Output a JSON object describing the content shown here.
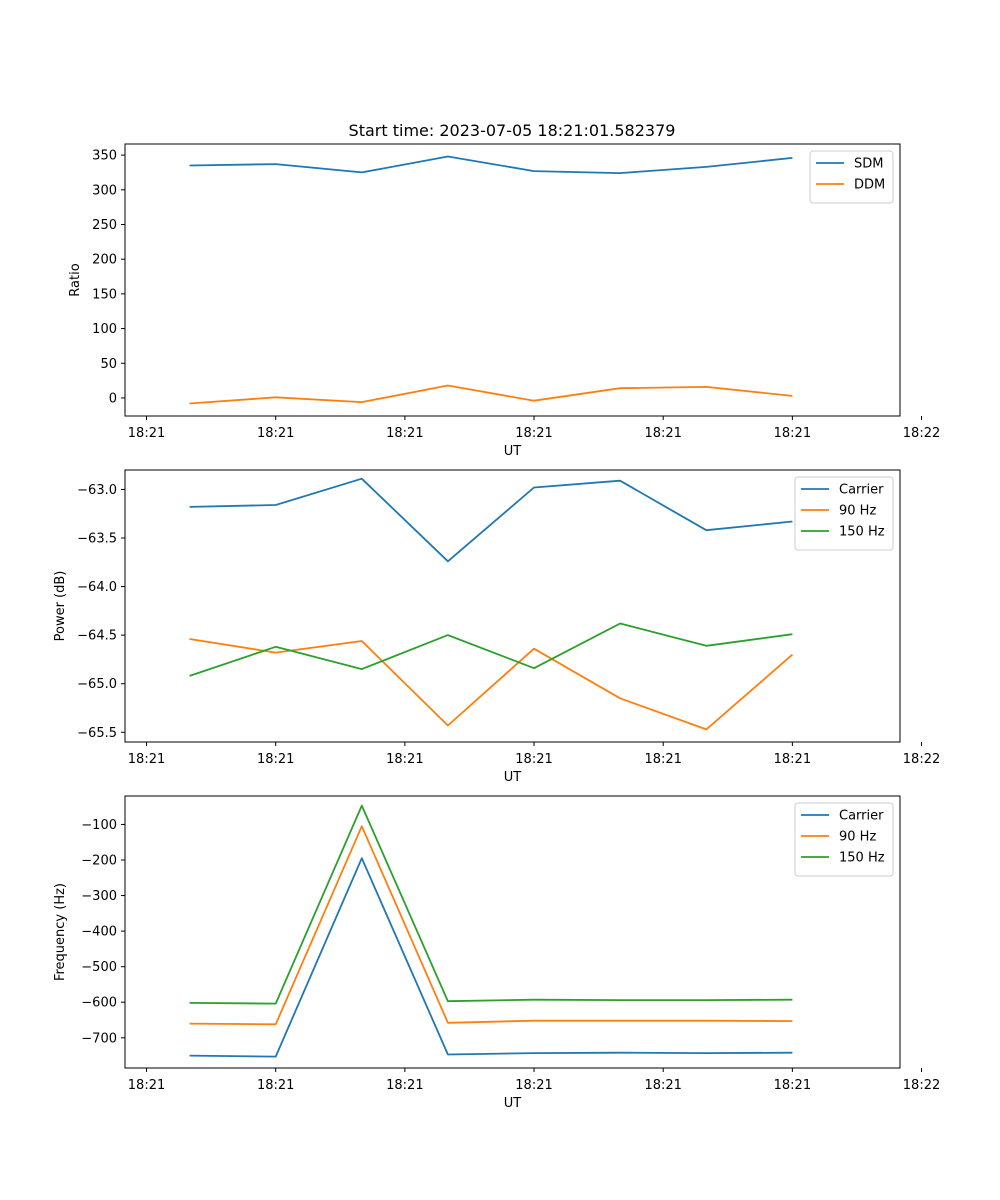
{
  "figure": {
    "title": "Start time: 2023-07-05 18:21:01.582379"
  },
  "chart_data": [
    {
      "type": "line",
      "title": "Start time: 2023-07-05 18:21:01.582379",
      "xlabel": "UT",
      "ylabel": "Ratio",
      "x": [
        1,
        2,
        3,
        4,
        5,
        6,
        7,
        8
      ],
      "xlim": [
        0.25,
        9.25
      ],
      "x_ticks": [
        0.5,
        2,
        3.5,
        5,
        6.5,
        8,
        9.5
      ],
      "x_tick_labels": [
        "18:21",
        "18:21",
        "18:21",
        "18:21",
        "18:21",
        "18:21",
        "18:22"
      ],
      "ylim": [
        -26,
        366
      ],
      "y_ticks": [
        0,
        50,
        100,
        150,
        200,
        250,
        300,
        350
      ],
      "y_tick_labels": [
        "0",
        "50",
        "100",
        "150",
        "200",
        "250",
        "300",
        "350"
      ],
      "legend_position": "top-right",
      "series": [
        {
          "name": "SDM",
          "color": "#1f77b4",
          "values": [
            335,
            337,
            325,
            348,
            327,
            324,
            333,
            346
          ]
        },
        {
          "name": "DDM",
          "color": "#ff7f0e",
          "values": [
            -8,
            1,
            -6,
            18,
            -4,
            14,
            16,
            3
          ]
        }
      ]
    },
    {
      "type": "line",
      "title": "",
      "xlabel": "UT",
      "ylabel": "Power (dB)",
      "x": [
        1,
        2,
        3,
        4,
        5,
        6,
        7,
        8
      ],
      "xlim": [
        0.25,
        9.25
      ],
      "x_ticks": [
        0.5,
        2,
        3.5,
        5,
        6.5,
        8,
        9.5
      ],
      "x_tick_labels": [
        "18:21",
        "18:21",
        "18:21",
        "18:21",
        "18:21",
        "18:21",
        "18:22"
      ],
      "ylim": [
        -65.6,
        -62.8
      ],
      "y_ticks": [
        -63.0,
        -63.5,
        -64.0,
        -64.5,
        -65.0,
        -65.5
      ],
      "y_tick_labels": [
        "−63.0",
        "−63.5",
        "−64.0",
        "−64.5",
        "−65.0",
        "−65.5"
      ],
      "legend_position": "top-right",
      "series": [
        {
          "name": "Carrier",
          "color": "#1f77b4",
          "values": [
            -63.18,
            -63.16,
            -62.89,
            -63.74,
            -62.98,
            -62.91,
            -63.42,
            -63.33
          ]
        },
        {
          "name": "90 Hz",
          "color": "#ff7f0e",
          "values": [
            -64.54,
            -64.68,
            -64.56,
            -65.43,
            -64.64,
            -65.15,
            -65.47,
            -64.7
          ]
        },
        {
          "name": "150 Hz",
          "color": "#2ca02c",
          "values": [
            -64.92,
            -64.62,
            -64.85,
            -64.5,
            -64.84,
            -64.38,
            -64.61,
            -64.49
          ]
        }
      ]
    },
    {
      "type": "line",
      "title": "",
      "xlabel": "UT",
      "ylabel": "Frequency (Hz)",
      "x": [
        1,
        2,
        3,
        4,
        5,
        6,
        7,
        8
      ],
      "xlim": [
        0.25,
        9.25
      ],
      "x_ticks": [
        0.5,
        2,
        3.5,
        5,
        6.5,
        8,
        9.5
      ],
      "x_tick_labels": [
        "18:21",
        "18:21",
        "18:21",
        "18:21",
        "18:21",
        "18:21",
        "18:22"
      ],
      "ylim": [
        -785,
        -20
      ],
      "y_ticks": [
        -100,
        -200,
        -300,
        -400,
        -500,
        -600,
        -700
      ],
      "y_tick_labels": [
        "−100",
        "−200",
        "−300",
        "−400",
        "−500",
        "−600",
        "−700"
      ],
      "legend_position": "top-right",
      "series": [
        {
          "name": "Carrier",
          "color": "#1f77b4",
          "values": [
            -750,
            -753,
            -195,
            -747,
            -743,
            -742,
            -743,
            -742
          ]
        },
        {
          "name": "90 Hz",
          "color": "#ff7f0e",
          "values": [
            -660,
            -662,
            -105,
            -658,
            -652,
            -652,
            -652,
            -653
          ]
        },
        {
          "name": "150 Hz",
          "color": "#2ca02c",
          "values": [
            -602,
            -604,
            -47,
            -597,
            -593,
            -594,
            -594,
            -593
          ]
        }
      ]
    }
  ]
}
